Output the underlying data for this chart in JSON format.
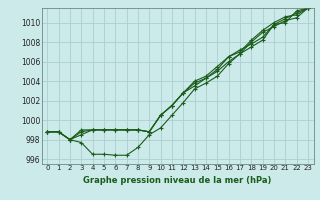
{
  "xlabel": "Graphe pression niveau de la mer (hPa)",
  "bg_color": "#cceaea",
  "grid_color": "#aacfcf",
  "line_color": "#1a5c1a",
  "ylim": [
    995.5,
    1011.5
  ],
  "xlim": [
    -0.5,
    23.5
  ],
  "yticks": [
    996,
    998,
    1000,
    1002,
    1004,
    1006,
    1008,
    1010
  ],
  "xticks": [
    0,
    1,
    2,
    3,
    4,
    5,
    6,
    7,
    8,
    9,
    10,
    11,
    12,
    13,
    14,
    15,
    16,
    17,
    18,
    19,
    20,
    21,
    22,
    23
  ],
  "series": [
    [
      998.8,
      998.8,
      998.0,
      997.7,
      996.5,
      996.5,
      996.4,
      996.4,
      997.2,
      998.5,
      999.2,
      1000.5,
      1001.8,
      1003.2,
      1003.8,
      1004.5,
      1005.8,
      1006.8,
      1007.5,
      1008.2,
      1009.8,
      1010.0,
      1011.2,
      1011.5
    ],
    [
      998.8,
      998.8,
      998.0,
      999.0,
      999.0,
      999.0,
      999.0,
      999.0,
      999.0,
      998.8,
      1000.5,
      1001.5,
      1002.8,
      1004.0,
      1004.5,
      1005.5,
      1006.5,
      1007.2,
      1007.8,
      1008.5,
      1009.8,
      1010.4,
      1011.0,
      1011.5
    ],
    [
      998.8,
      998.8,
      998.0,
      998.8,
      999.0,
      999.0,
      999.0,
      999.0,
      999.0,
      998.8,
      1000.5,
      1001.5,
      1002.8,
      1003.5,
      1004.3,
      1005.2,
      1006.5,
      1007.0,
      1008.2,
      1009.2,
      1010.0,
      1010.6,
      1010.8,
      1011.5
    ],
    [
      998.8,
      998.8,
      998.0,
      998.5,
      999.0,
      999.0,
      999.0,
      999.0,
      999.0,
      998.8,
      1000.5,
      1001.5,
      1002.8,
      1003.8,
      1004.3,
      1005.0,
      1006.0,
      1006.8,
      1008.0,
      1009.0,
      1009.6,
      1010.2,
      1010.5,
      1011.5
    ]
  ]
}
